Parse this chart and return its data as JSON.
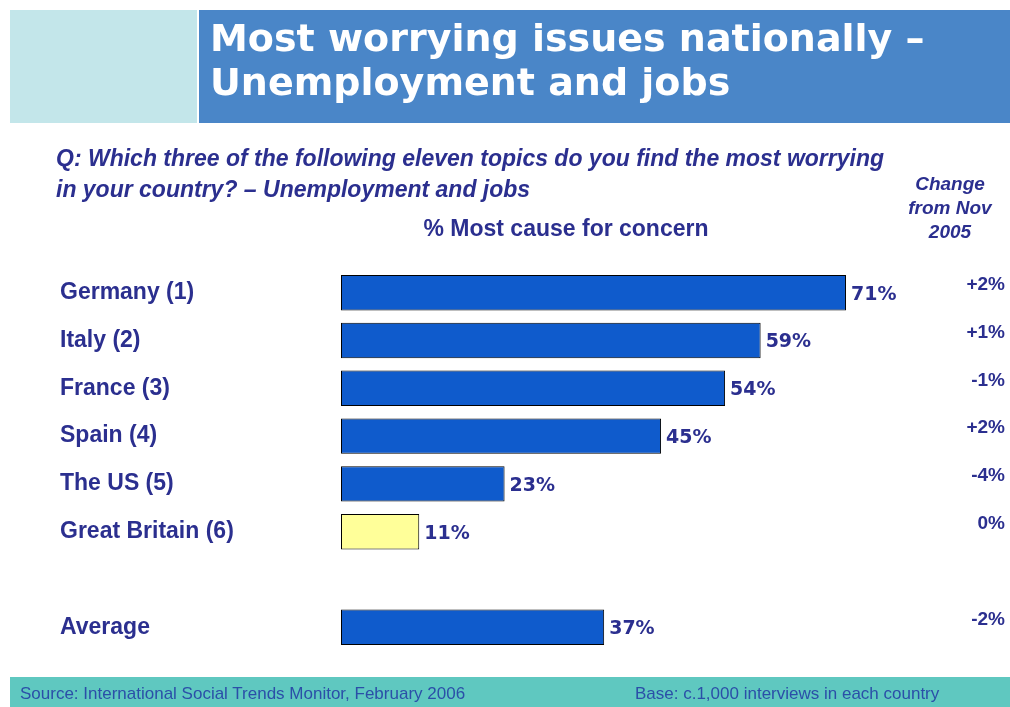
{
  "chart_data": {
    "type": "bar",
    "orientation": "horizontal",
    "title": "Most worrying issues nationally –\nUnemployment and jobs",
    "subtitle": "Q: Which three of the following eleven topics do you find the most worrying in your country? – Unemployment and jobs",
    "xlabel": "% Most cause for concern",
    "categories": [
      "Germany (1)",
      "Italy (2)",
      "France (3)",
      "Spain (4)",
      "The US (5)",
      "Great Britain (6)",
      null,
      "Average"
    ],
    "values": [
      71,
      59,
      54,
      45,
      23,
      11,
      null,
      37
    ],
    "colors": [
      "#0f5bcc",
      "#0f5bcc",
      "#0f5bcc",
      "#0f5bcc",
      "#0f5bcc",
      "#ffff99",
      null,
      "#0f5bcc"
    ],
    "value_labels": [
      "71%",
      "59%",
      "54%",
      "45%",
      "23%",
      "11%",
      null,
      "37%"
    ],
    "annotations": [
      "Source: International Social Trends Monitor, February 2006",
      "Base: c.1,000 interviews in each country",
      "Change from Nov 2005",
      "+2%",
      "+1%",
      "-1%",
      "+2%",
      "-4%",
      "0%",
      "-2%"
    ],
    "legend": false
  }
}
